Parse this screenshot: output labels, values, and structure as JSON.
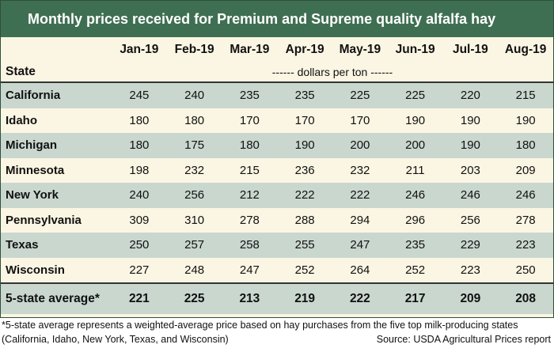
{
  "title": "Monthly prices received for Premium and Supreme quality alfalfa hay",
  "columns": [
    "Jan-19",
    "Feb-19",
    "Mar-19",
    "Apr-19",
    "May-19",
    "Jun-19",
    "Jul-19",
    "Aug-19"
  ],
  "state_header": "State",
  "unit_label": "------ dollars per ton ------",
  "rows": [
    {
      "state": "California",
      "values": [
        "245",
        "240",
        "235",
        "235",
        "225",
        "225",
        "220",
        "215"
      ]
    },
    {
      "state": "Idaho",
      "values": [
        "180",
        "180",
        "170",
        "170",
        "170",
        "190",
        "190",
        "190"
      ]
    },
    {
      "state": "Michigan",
      "values": [
        "180",
        "175",
        "180",
        "190",
        "200",
        "200",
        "190",
        "180"
      ]
    },
    {
      "state": "Minnesota",
      "values": [
        "198",
        "232",
        "215",
        "236",
        "232",
        "211",
        "203",
        "209"
      ]
    },
    {
      "state": "New York",
      "values": [
        "240",
        "256",
        "212",
        "222",
        "222",
        "246",
        "246",
        "246"
      ]
    },
    {
      "state": "Pennsylvania",
      "values": [
        "309",
        "310",
        "278",
        "288",
        "294",
        "296",
        "256",
        "278"
      ]
    },
    {
      "state": "Texas",
      "values": [
        "250",
        "257",
        "258",
        "255",
        "247",
        "235",
        "229",
        "223"
      ]
    },
    {
      "state": "Wisconsin",
      "values": [
        "227",
        "248",
        "247",
        "252",
        "264",
        "252",
        "223",
        "250"
      ]
    }
  ],
  "average": {
    "label": "5-state average*",
    "values": [
      "221",
      "225",
      "213",
      "219",
      "222",
      "217",
      "209",
      "208"
    ]
  },
  "footnote": {
    "line1": "*5-state average represents  a weighted-average price based on hay purchases from the five top milk-producing states",
    "line2": "(California, Idaho, New York, Texas, and Wisconsin)",
    "source": "Source: USDA Agricultural Prices report"
  },
  "colors": {
    "title_bg": "#3f6f52",
    "shaded_row": "#c9d7cf",
    "plain_row": "#fbf6e3"
  }
}
